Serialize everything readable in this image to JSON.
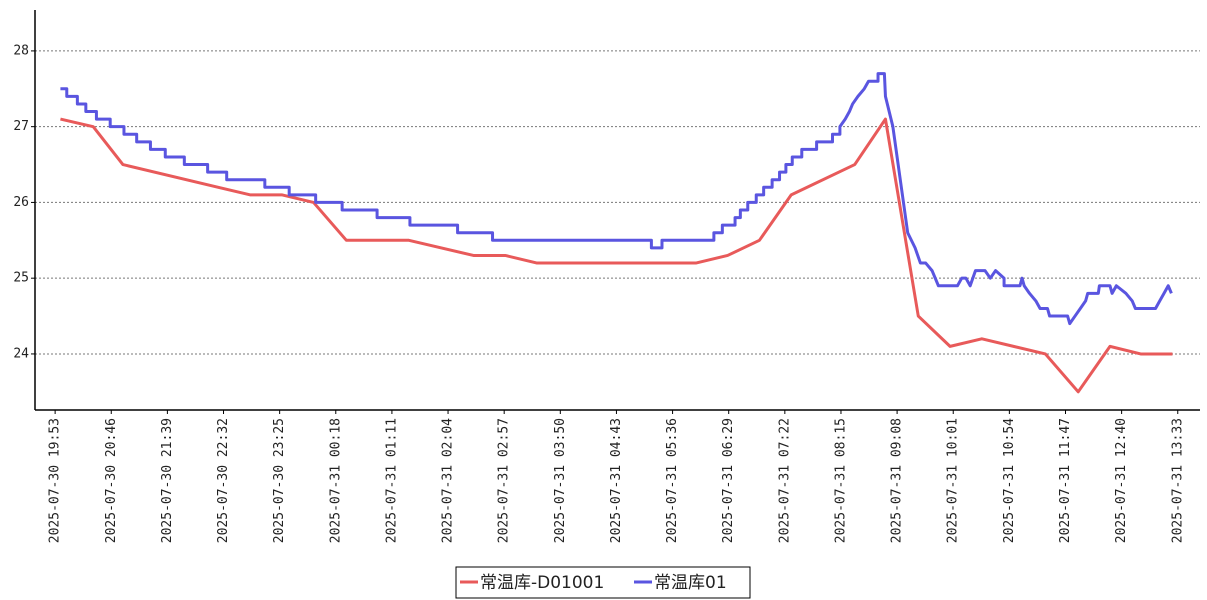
{
  "chart_data": {
    "type": "line",
    "xlim": [
      "2025-07-30 19:34",
      "2025-07-31 13:54"
    ],
    "xticks": [
      "2025-07-30 19:53",
      "2025-07-30 20:46",
      "2025-07-30 21:39",
      "2025-07-30 22:32",
      "2025-07-30 23:25",
      "2025-07-31 00:18",
      "2025-07-31 01:11",
      "2025-07-31 02:04",
      "2025-07-31 02:57",
      "2025-07-31 03:50",
      "2025-07-31 04:43",
      "2025-07-31 05:36",
      "2025-07-31 06:29",
      "2025-07-31 07:22",
      "2025-07-31 08:15",
      "2025-07-31 09:08",
      "2025-07-31 10:01",
      "2025-07-31 10:54",
      "2025-07-31 11:47",
      "2025-07-31 12:40",
      "2025-07-31 13:33"
    ],
    "ylim": [
      23.26,
      28.54
    ],
    "yticks": [
      24,
      25,
      26,
      27,
      28
    ],
    "grid": true,
    "legend": "bottom",
    "series": [
      {
        "name": "常温库-D01001",
        "color": "#e85a5a",
        "x": [
          "2025-07-30 19:58",
          "2025-07-30 20:29",
          "2025-07-30 20:57",
          "2025-07-30 22:27",
          "2025-07-30 22:57",
          "2025-07-30 23:27",
          "2025-07-30 23:57",
          "2025-07-31 00:28",
          "2025-07-31 01:27",
          "2025-07-31 02:28",
          "2025-07-31 02:58",
          "2025-07-31 03:28",
          "2025-07-31 05:58",
          "2025-07-31 06:28",
          "2025-07-31 06:58",
          "2025-07-31 07:28",
          "2025-07-31 08:28",
          "2025-07-31 08:57",
          "2025-07-31 09:28",
          "2025-07-31 09:58",
          "2025-07-31 10:28",
          "2025-07-31 10:58",
          "2025-07-31 11:28",
          "2025-07-31 11:59",
          "2025-07-31 12:29",
          "2025-07-31 12:58",
          "2025-07-31 13:28"
        ],
        "values": [
          27.1,
          27.0,
          26.5,
          26.2,
          26.1,
          26.1,
          26.0,
          25.5,
          25.5,
          25.3,
          25.3,
          25.2,
          25.2,
          25.3,
          25.5,
          26.1,
          26.5,
          27.1,
          24.5,
          24.1,
          24.2,
          24.1,
          24.0,
          23.5,
          24.1,
          24.0,
          24.0
        ]
      },
      {
        "name": "常温库01",
        "color": "#5a55e0",
        "x": [
          "2025-07-30 19:58",
          "2025-07-30 20:04",
          "2025-07-30 20:04",
          "2025-07-30 20:14",
          "2025-07-30 20:14",
          "2025-07-30 20:22",
          "2025-07-30 20:22",
          "2025-07-30 20:32",
          "2025-07-30 20:32",
          "2025-07-30 20:45",
          "2025-07-30 20:45",
          "2025-07-30 20:58",
          "2025-07-30 20:58",
          "2025-07-30 21:10",
          "2025-07-30 21:10",
          "2025-07-30 21:23",
          "2025-07-30 21:23",
          "2025-07-30 21:37",
          "2025-07-30 21:37",
          "2025-07-30 21:55",
          "2025-07-30 21:55",
          "2025-07-30 22:17",
          "2025-07-30 22:17",
          "2025-07-30 22:35",
          "2025-07-30 22:35",
          "2025-07-30 23:11",
          "2025-07-30 23:11",
          "2025-07-30 23:34",
          "2025-07-30 23:34",
          "2025-07-30 23:59",
          "2025-07-30 23:59",
          "2025-07-31 00:24",
          "2025-07-31 00:24",
          "2025-07-31 00:57",
          "2025-07-31 00:57",
          "2025-07-31 01:28",
          "2025-07-31 01:28",
          "2025-07-31 02:13",
          "2025-07-31 02:13",
          "2025-07-31 02:46",
          "2025-07-31 02:46",
          "2025-07-31 05:16",
          "2025-07-31 05:16",
          "2025-07-31 05:26",
          "2025-07-31 05:26",
          "2025-07-31 06:15",
          "2025-07-31 06:15",
          "2025-07-31 06:23",
          "2025-07-31 06:23",
          "2025-07-31 06:35",
          "2025-07-31 06:35",
          "2025-07-31 06:40",
          "2025-07-31 06:40",
          "2025-07-31 06:47",
          "2025-07-31 06:47",
          "2025-07-31 06:55",
          "2025-07-31 06:55",
          "2025-07-31 07:02",
          "2025-07-31 07:02",
          "2025-07-31 07:10",
          "2025-07-31 07:10",
          "2025-07-31 07:17",
          "2025-07-31 07:17",
          "2025-07-31 07:23",
          "2025-07-31 07:23",
          "2025-07-31 07:29",
          "2025-07-31 07:29",
          "2025-07-31 07:38",
          "2025-07-31 07:38",
          "2025-07-31 07:52",
          "2025-07-31 07:52",
          "2025-07-31 08:07",
          "2025-07-31 08:07",
          "2025-07-31 08:14",
          "2025-07-31 08:14",
          "2025-07-31 08:19",
          "2025-07-31 08:23",
          "2025-07-31 08:26",
          "2025-07-31 08:31",
          "2025-07-31 08:37",
          "2025-07-31 08:41",
          "2025-07-31 08:50",
          "2025-07-31 08:50",
          "2025-07-31 08:56",
          "2025-07-31 08:57",
          "2025-07-31 09:04",
          "2025-07-31 09:09",
          "2025-07-31 09:14",
          "2025-07-31 09:18",
          "2025-07-31 09:25",
          "2025-07-31 09:30",
          "2025-07-31 09:35",
          "2025-07-31 09:41",
          "2025-07-31 09:47",
          "2025-07-31 10:05",
          "2025-07-31 10:09",
          "2025-07-31 10:13",
          "2025-07-31 10:17",
          "2025-07-31 10:22",
          "2025-07-31 10:31",
          "2025-07-31 10:36",
          "2025-07-31 10:41",
          "2025-07-31 10:49",
          "2025-07-31 10:49",
          "2025-07-31 11:04",
          "2025-07-31 11:06",
          "2025-07-31 11:08",
          "2025-07-31 11:13",
          "2025-07-31 11:19",
          "2025-07-31 11:23",
          "2025-07-31 11:30",
          "2025-07-31 11:32",
          "2025-07-31 11:49",
          "2025-07-31 11:51",
          "2025-07-31 11:56",
          "2025-07-31 12:01",
          "2025-07-31 12:06",
          "2025-07-31 12:08",
          "2025-07-31 12:18",
          "2025-07-31 12:19",
          "2025-07-31 12:29",
          "2025-07-31 12:31",
          "2025-07-31 12:35",
          "2025-07-31 12:44",
          "2025-07-31 12:50",
          "2025-07-31 12:53",
          "2025-07-31 13:12",
          "2025-07-31 13:16",
          "2025-07-31 13:20",
          "2025-07-31 13:24",
          "2025-07-31 13:27"
        ],
        "values": [
          27.5,
          27.5,
          27.4,
          27.4,
          27.3,
          27.3,
          27.2,
          27.2,
          27.1,
          27.1,
          27.0,
          27.0,
          26.9,
          26.9,
          26.8,
          26.8,
          26.7,
          26.7,
          26.6,
          26.6,
          26.5,
          26.5,
          26.4,
          26.4,
          26.3,
          26.3,
          26.2,
          26.2,
          26.1,
          26.1,
          26.0,
          26.0,
          25.9,
          25.9,
          25.8,
          25.8,
          25.7,
          25.7,
          25.6,
          25.6,
          25.5,
          25.5,
          25.4,
          25.4,
          25.5,
          25.5,
          25.6,
          25.6,
          25.7,
          25.7,
          25.8,
          25.8,
          25.9,
          25.9,
          26.0,
          26.0,
          26.1,
          26.1,
          26.2,
          26.2,
          26.3,
          26.3,
          26.4,
          26.4,
          26.5,
          26.5,
          26.6,
          26.6,
          26.7,
          26.7,
          26.8,
          26.8,
          26.9,
          26.9,
          27.0,
          27.1,
          27.2,
          27.3,
          27.4,
          27.5,
          27.6,
          27.6,
          27.7,
          27.7,
          27.4,
          27.0,
          26.5,
          26.0,
          25.6,
          25.4,
          25.2,
          25.2,
          25.1,
          24.9,
          24.9,
          25.0,
          25.0,
          24.9,
          25.1,
          25.1,
          25.0,
          25.1,
          25.0,
          24.9,
          24.9,
          25.0,
          24.9,
          24.8,
          24.7,
          24.6,
          24.6,
          24.5,
          24.5,
          24.4,
          24.5,
          24.6,
          24.7,
          24.8,
          24.8,
          24.9,
          24.9,
          24.8,
          24.9,
          24.8,
          24.7,
          24.6,
          24.6,
          24.7,
          24.8,
          24.9,
          24.8
        ]
      }
    ]
  }
}
